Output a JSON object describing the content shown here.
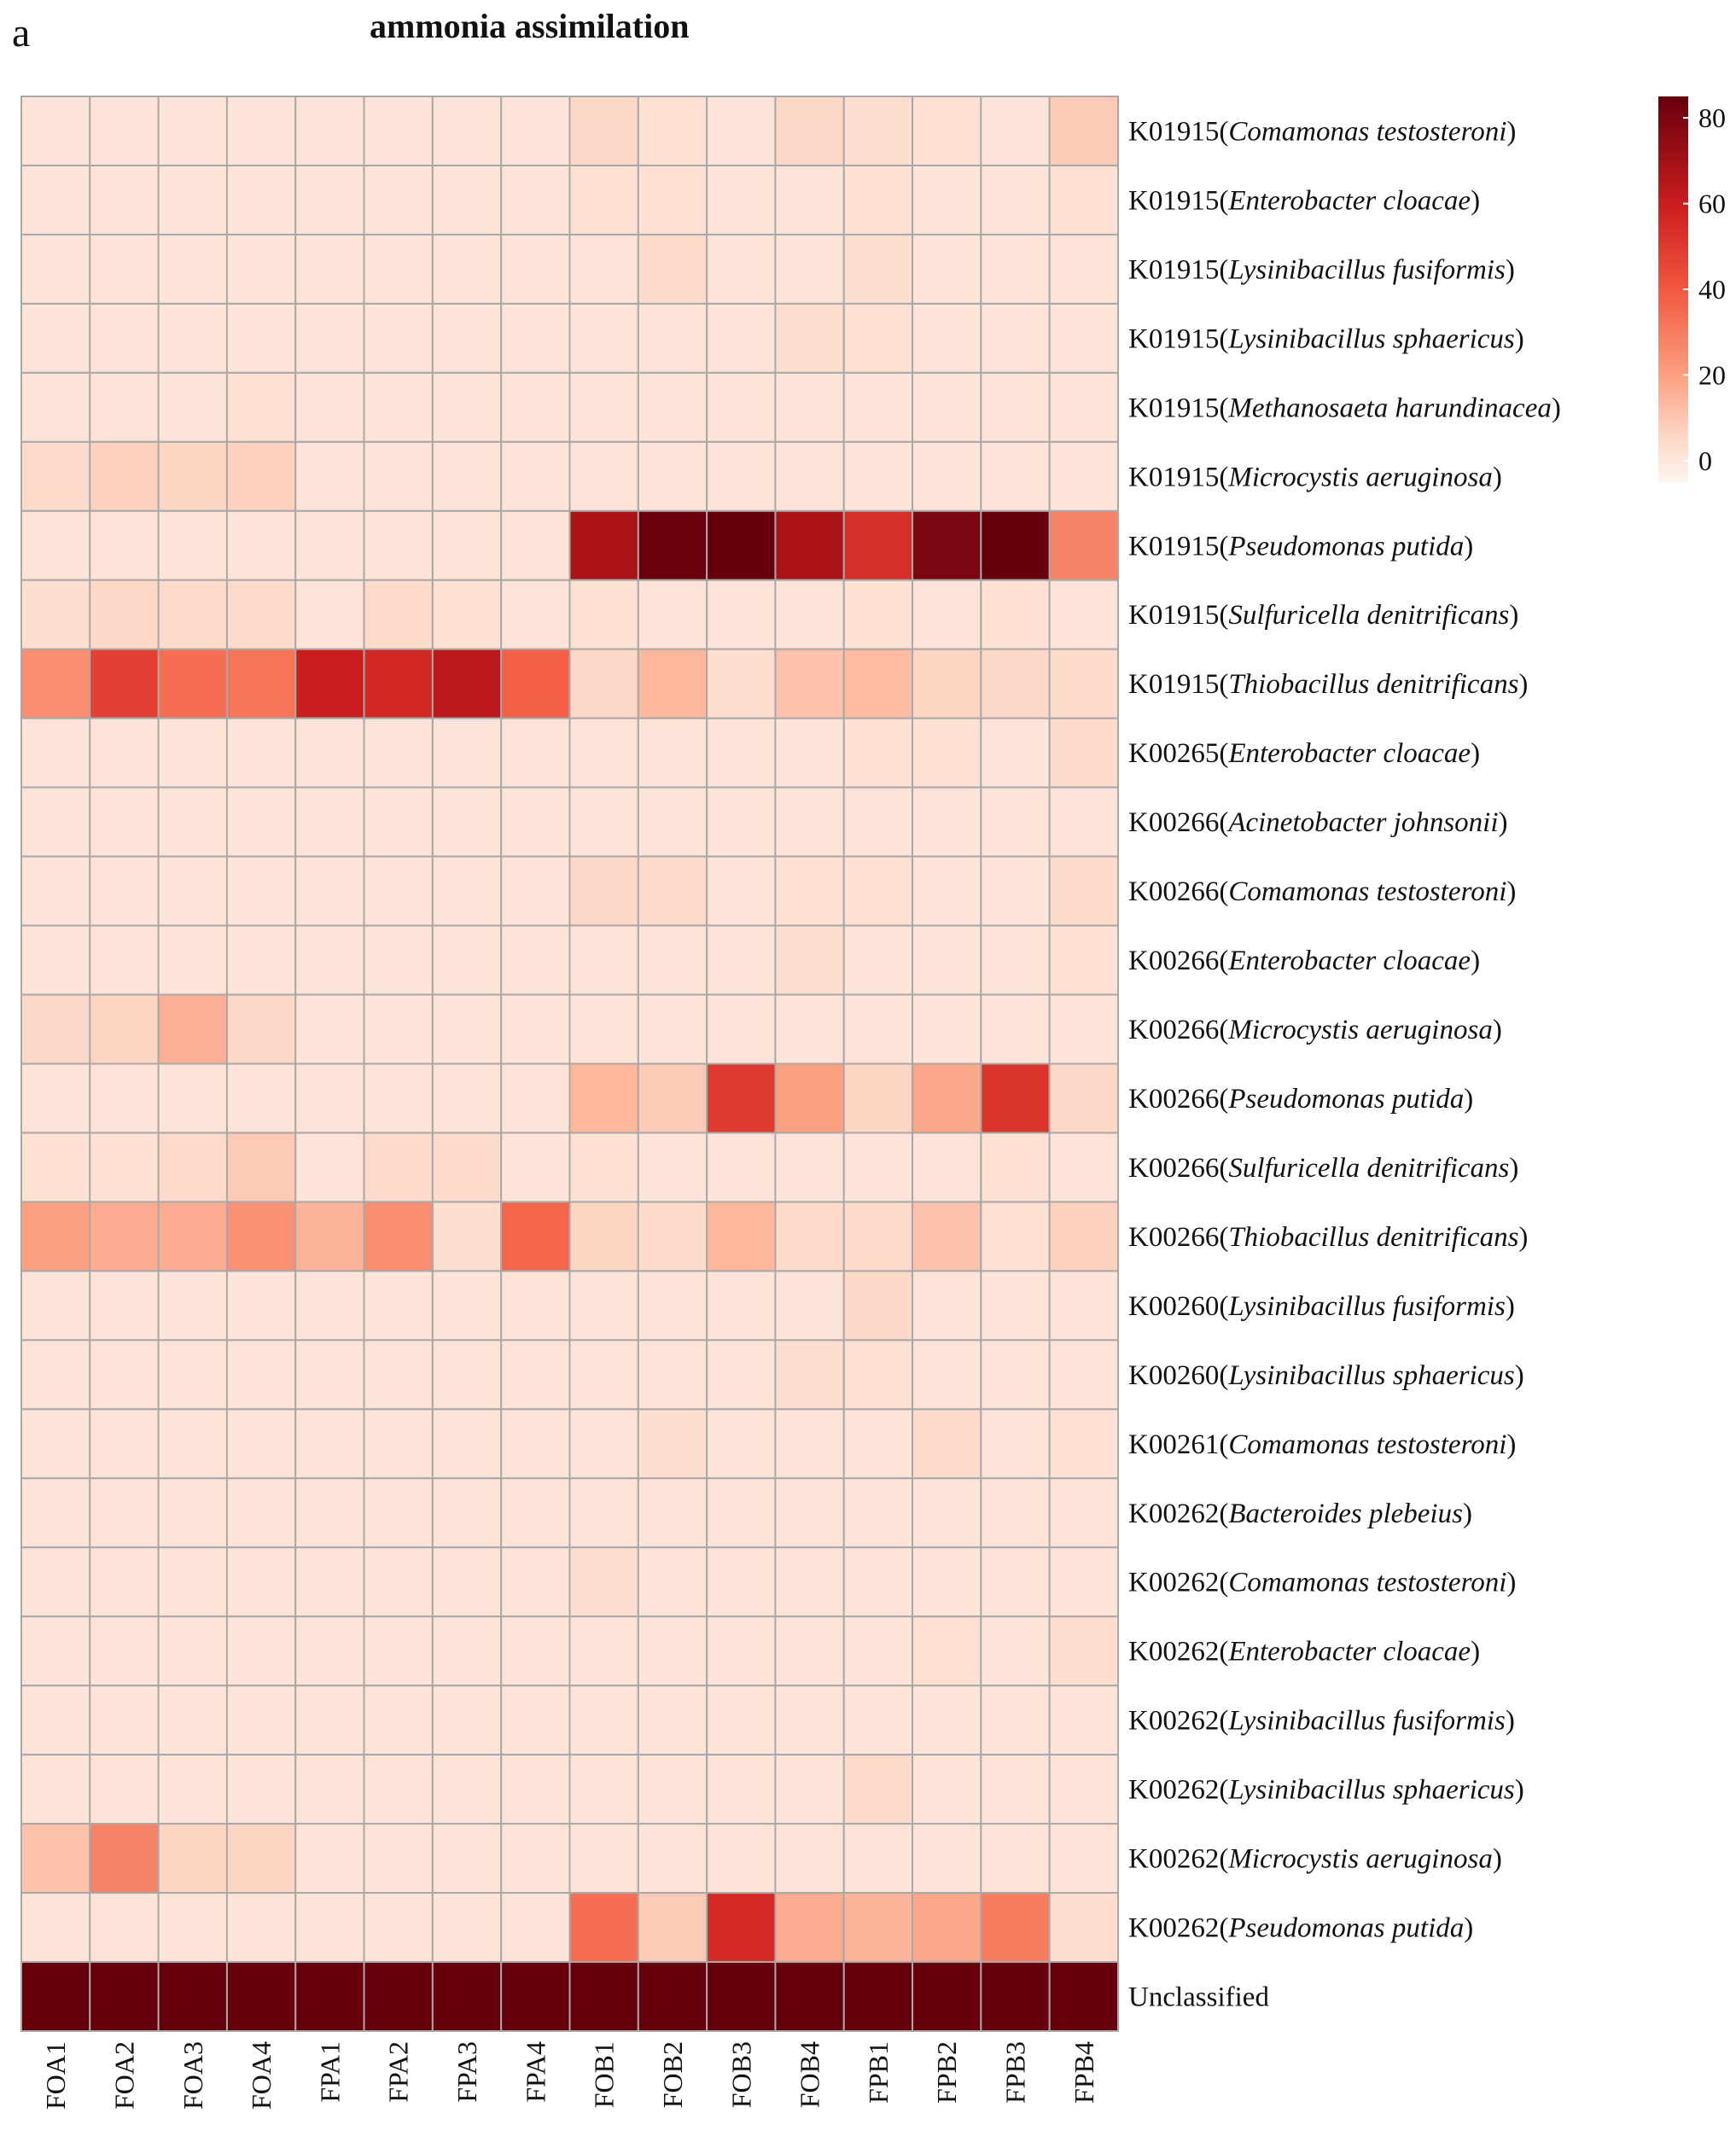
{
  "chart_data": {
    "type": "heatmap",
    "panel_label": "a",
    "title": "ammonia assimilation",
    "columns": [
      "FOA1",
      "FOA2",
      "FOA3",
      "FOA4",
      "FPA1",
      "FPA2",
      "FPA3",
      "FPA4",
      "FOB1",
      "FOB2",
      "FOB3",
      "FOB4",
      "FPB1",
      "FPB2",
      "FPB3",
      "FPB4"
    ],
    "rows": [
      {
        "code": "K01915(",
        "species": "Comamonas testosteroni",
        "close": ")"
      },
      {
        "code": "K01915(",
        "species": "Enterobacter cloacae",
        "close": ")"
      },
      {
        "code": "K01915(",
        "species": "Lysinibacillus fusiformis",
        "close": ")"
      },
      {
        "code": "K01915(",
        "species": "Lysinibacillus sphaericus",
        "close": ")"
      },
      {
        "code": "K01915(",
        "species": "Methanosaeta harundinacea",
        "close": ")"
      },
      {
        "code": "K01915(",
        "species": "Microcystis aeruginosa",
        "close": ")"
      },
      {
        "code": "K01915(",
        "species": "Pseudomonas putida",
        "close": ")"
      },
      {
        "code": "K01915(",
        "species": "Sulfuricella denitrificans",
        "close": ")"
      },
      {
        "code": "K01915(",
        "species": "Thiobacillus denitrificans",
        "close": ")"
      },
      {
        "code": "K00265(",
        "species": "Enterobacter cloacae",
        "close": ")"
      },
      {
        "code": "K00266(",
        "species": "Acinetobacter johnsonii",
        "close": ")"
      },
      {
        "code": "K00266(",
        "species": "Comamonas testosteroni",
        "close": ")"
      },
      {
        "code": "K00266(",
        "species": "Enterobacter cloacae",
        "close": ")"
      },
      {
        "code": "K00266(",
        "species": "Microcystis aeruginosa",
        "close": ")"
      },
      {
        "code": "K00266(",
        "species": "Pseudomonas putida",
        "close": ")"
      },
      {
        "code": "K00266(",
        "species": "Sulfuricella denitrificans",
        "close": ")"
      },
      {
        "code": "K00266(",
        "species": "Thiobacillus denitrificans",
        "close": ")"
      },
      {
        "code": "K00260(",
        "species": "Lysinibacillus fusiformis",
        "close": ")"
      },
      {
        "code": "K00260(",
        "species": "Lysinibacillus sphaericus",
        "close": ")"
      },
      {
        "code": "K00261(",
        "species": "Comamonas testosteroni",
        "close": ")"
      },
      {
        "code": "K00262(",
        "species": "Bacteroides plebeius",
        "close": ")"
      },
      {
        "code": "K00262(",
        "species": "Comamonas testosteroni",
        "close": ")"
      },
      {
        "code": "K00262(",
        "species": "Enterobacter cloacae",
        "close": ")"
      },
      {
        "code": "K00262(",
        "species": "Lysinibacillus fusiformis",
        "close": ")"
      },
      {
        "code": "K00262(",
        "species": "Lysinibacillus sphaericus",
        "close": ")"
      },
      {
        "code": "K00262(",
        "species": "Microcystis aeruginosa",
        "close": ")"
      },
      {
        "code": "K00262(",
        "species": "Pseudomonas putida",
        "close": ")"
      },
      {
        "code": "",
        "species": "",
        "close": "",
        "label": "Unclassified"
      }
    ],
    "values": [
      [
        1,
        1,
        1,
        1,
        1,
        1,
        1,
        1,
        5,
        2,
        1,
        5,
        3,
        2,
        1,
        9
      ],
      [
        1,
        1,
        1,
        1,
        1,
        1,
        1,
        1,
        2,
        2,
        1,
        1,
        2,
        1,
        1,
        2
      ],
      [
        1,
        1,
        1,
        1,
        1,
        1,
        1,
        1,
        1,
        4,
        1,
        1,
        3,
        1,
        1,
        1
      ],
      [
        1,
        1,
        1,
        1,
        1,
        1,
        1,
        1,
        1,
        1,
        1,
        3,
        2,
        1,
        1,
        1
      ],
      [
        1,
        1,
        1,
        2,
        1,
        1,
        1,
        1,
        1,
        1,
        1,
        1,
        1,
        1,
        1,
        1
      ],
      [
        4,
        7,
        6,
        7,
        1,
        1,
        1,
        1,
        1,
        1,
        1,
        1,
        1,
        1,
        1,
        1
      ],
      [
        1,
        1,
        1,
        1,
        1,
        1,
        1,
        1,
        68,
        84,
        86,
        68,
        54,
        80,
        86,
        28
      ],
      [
        3,
        5,
        4,
        4,
        1,
        4,
        2,
        1,
        2,
        1,
        1,
        1,
        2,
        1,
        2,
        1
      ],
      [
        25,
        48,
        34,
        32,
        60,
        56,
        64,
        38,
        5,
        14,
        3,
        11,
        13,
        6,
        5,
        4
      ],
      [
        1,
        1,
        1,
        1,
        1,
        1,
        1,
        1,
        1,
        1,
        1,
        1,
        2,
        2,
        1,
        4
      ],
      [
        1,
        1,
        1,
        1,
        1,
        1,
        1,
        1,
        1,
        1,
        1,
        1,
        1,
        1,
        1,
        1
      ],
      [
        1,
        1,
        1,
        1,
        1,
        1,
        1,
        1,
        5,
        4,
        1,
        2,
        2,
        1,
        1,
        4
      ],
      [
        1,
        1,
        1,
        1,
        1,
        1,
        1,
        1,
        1,
        1,
        1,
        3,
        1,
        1,
        1,
        2
      ],
      [
        5,
        6,
        16,
        5,
        1,
        1,
        1,
        1,
        1,
        1,
        1,
        1,
        1,
        1,
        1,
        1
      ],
      [
        1,
        1,
        1,
        1,
        1,
        1,
        1,
        1,
        14,
        9,
        50,
        20,
        6,
        18,
        52,
        5
      ],
      [
        2,
        2,
        4,
        9,
        1,
        4,
        4,
        1,
        2,
        1,
        1,
        1,
        1,
        1,
        2,
        1
      ],
      [
        20,
        17,
        17,
        24,
        15,
        25,
        3,
        36,
        6,
        4,
        14,
        4,
        4,
        11,
        2,
        7
      ],
      [
        1,
        1,
        1,
        1,
        1,
        1,
        1,
        1,
        1,
        1,
        1,
        1,
        5,
        1,
        1,
        1
      ],
      [
        1,
        1,
        1,
        1,
        1,
        1,
        1,
        1,
        1,
        1,
        1,
        3,
        2,
        1,
        1,
        1
      ],
      [
        1,
        1,
        1,
        1,
        1,
        1,
        1,
        1,
        1,
        3,
        1,
        1,
        1,
        4,
        1,
        2
      ],
      [
        1,
        1,
        1,
        1,
        1,
        1,
        1,
        1,
        1,
        1,
        1,
        1,
        1,
        1,
        1,
        1
      ],
      [
        1,
        1,
        1,
        1,
        1,
        1,
        1,
        1,
        3,
        1,
        1,
        1,
        1,
        1,
        1,
        1
      ],
      [
        1,
        1,
        1,
        1,
        1,
        1,
        1,
        1,
        1,
        1,
        1,
        1,
        1,
        2,
        1,
        3
      ],
      [
        1,
        1,
        1,
        1,
        1,
        1,
        1,
        1,
        1,
        1,
        1,
        1,
        1,
        1,
        1,
        1
      ],
      [
        1,
        1,
        1,
        1,
        1,
        1,
        1,
        1,
        1,
        1,
        1,
        1,
        4,
        1,
        1,
        1
      ],
      [
        11,
        28,
        6,
        6,
        1,
        1,
        1,
        1,
        1,
        1,
        1,
        1,
        1,
        1,
        1,
        1
      ],
      [
        1,
        1,
        1,
        1,
        1,
        1,
        1,
        1,
        34,
        9,
        55,
        17,
        15,
        18,
        30,
        3
      ],
      [
        95,
        95,
        95,
        95,
        95,
        95,
        95,
        95,
        95,
        95,
        95,
        95,
        95,
        95,
        95,
        95
      ]
    ],
    "legend": {
      "ticks": [
        0,
        20,
        40,
        60,
        80
      ],
      "tick_labels": [
        "0",
        "20",
        "40",
        "60",
        "80"
      ],
      "range": [
        -5,
        85
      ]
    },
    "colors": {
      "low": "#fff5f0",
      "stops": [
        "#fff5f0",
        "#fdd6c4",
        "#fb9f80",
        "#f2583f",
        "#cb1d1e",
        "#67000d"
      ],
      "stop_positions": [
        0,
        0.12,
        0.28,
        0.5,
        0.72,
        1
      ],
      "grid": "#a8a8a8"
    }
  }
}
